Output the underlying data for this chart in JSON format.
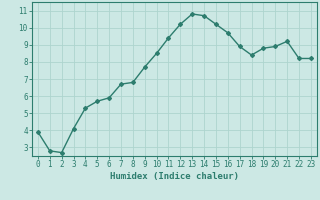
{
  "x": [
    0,
    1,
    2,
    3,
    4,
    5,
    6,
    7,
    8,
    9,
    10,
    11,
    12,
    13,
    14,
    15,
    16,
    17,
    18,
    19,
    20,
    21,
    22,
    23
  ],
  "y": [
    3.9,
    2.8,
    2.7,
    4.1,
    5.3,
    5.7,
    5.9,
    6.7,
    6.8,
    7.7,
    8.5,
    9.4,
    10.2,
    10.8,
    10.7,
    10.2,
    9.7,
    8.9,
    8.4,
    8.8,
    8.9,
    9.2,
    8.2,
    8.2
  ],
  "line_color": "#2d7d6e",
  "marker": "D",
  "marker_size": 2.0,
  "bg_color": "#cce8e4",
  "grid_color": "#aed4ce",
  "xlabel": "Humidex (Indice chaleur)",
  "ylabel": "",
  "xlim": [
    -0.5,
    23.5
  ],
  "ylim": [
    2.5,
    11.5
  ],
  "yticks": [
    3,
    4,
    5,
    6,
    7,
    8,
    9,
    10,
    11
  ],
  "xticks": [
    0,
    1,
    2,
    3,
    4,
    5,
    6,
    7,
    8,
    9,
    10,
    11,
    12,
    13,
    14,
    15,
    16,
    17,
    18,
    19,
    20,
    21,
    22,
    23
  ],
  "xlabel_fontsize": 6.5,
  "tick_fontsize": 5.5,
  "line_width": 1.0
}
